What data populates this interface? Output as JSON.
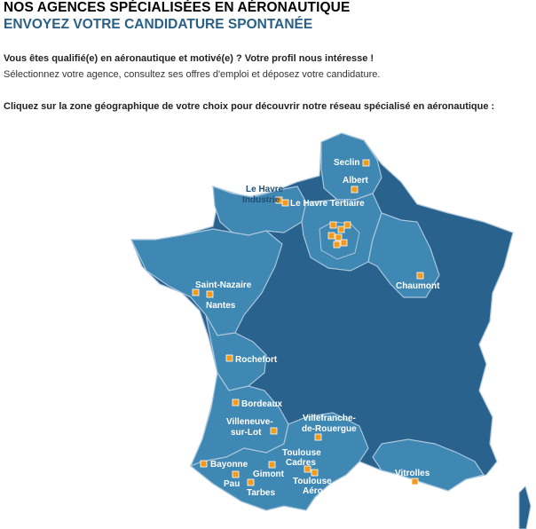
{
  "header": {
    "title": "NOS AGENCES SPÉCIALISÉES EN AÉRONAUTIQUE",
    "subtitle": "ENVOYEZ VOTRE CANDIDATURE SPONTANÉE"
  },
  "intro": {
    "strong": "Vous êtes qualifié(e) en aéronautique et motivé(e) ? Votre profil nous intéresse !",
    "text": "Sélectionnez votre agence, consultez ses offres d'emploi et déposez votre candidature."
  },
  "instruction": "Cliquez sur la zone géographique de votre choix pour découvrir notre réseau spécialisé en aéronautique :",
  "colors": {
    "region_light": "#3f88b3",
    "region_dark": "#2a628e",
    "border": "#a9c6dc",
    "pin": "#f39a1a"
  },
  "agencies": {
    "seclin": "Seclin",
    "albert": "Albert",
    "le_havre_industrie_1": "Le Havre",
    "le_havre_industrie_2": "Industrie",
    "le_havre_tertiaire": "Le Havre Tertiaire",
    "chaumont": "Chaumont",
    "saint_nazaire": "Saint-Nazaire",
    "nantes": "Nantes",
    "rochefort": "Rochefort",
    "bordeaux": "Bordeaux",
    "villeneuve_1": "Villeneuve-",
    "villeneuve_2": "sur-Lot",
    "villefranche_1": "Villefranche-",
    "villefranche_2": "de-Rouergue",
    "bayonne": "Bayonne",
    "pau": "Pau",
    "gimont": "Gimont",
    "tarbes": "Tarbes",
    "toulouse_cadres_1": "Toulouse",
    "toulouse_cadres_2": "Cadres",
    "toulouse_aero_1": "Toulouse",
    "toulouse_aero_2": "Aéro",
    "vitrolles": "Vitrolles"
  }
}
